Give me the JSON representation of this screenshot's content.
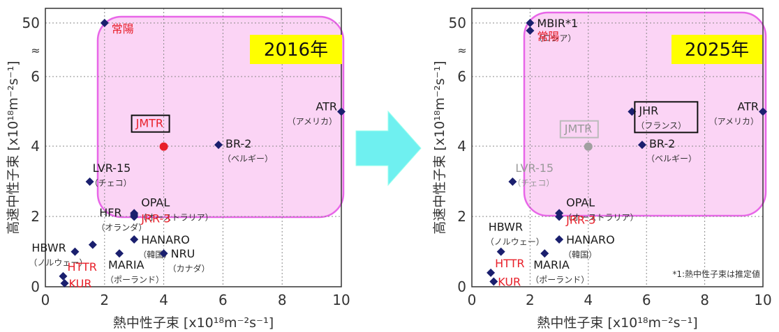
{
  "chart_data": [
    {
      "type": "scatter",
      "year_label": "2016年",
      "xlabel": "熱中性子束 [x10¹⁸m⁻²s⁻¹]",
      "ylabel": "高速中性子束 [x10¹⁸m⁻²s⁻¹]",
      "xlim": [
        0,
        10
      ],
      "x_ticks": [
        "0",
        "2",
        "4",
        "6",
        "8",
        "10"
      ],
      "y_ticks": [
        "0",
        "2",
        "4",
        "6",
        "50"
      ],
      "axis_break": "≈",
      "grid": true,
      "points": [
        {
          "name": "常陽",
          "x": 2.0,
          "y": 50,
          "color": "#e8202a"
        },
        {
          "name": "ATR",
          "sub": "（アメリカ）",
          "x": 10.0,
          "y": 5.0,
          "color": "#1a1a1a"
        },
        {
          "name": "JMTR",
          "x": 4.0,
          "y": 4.0,
          "color": "#e8202a",
          "highlight": true
        },
        {
          "name": "BR-2",
          "sub": "（ベルギー）",
          "x": 5.85,
          "y": 4.05,
          "color": "#1a1a1a"
        },
        {
          "name": "LVR-15",
          "sub": "（チェコ）",
          "x": 1.5,
          "y": 3.0,
          "color": "#1a1a1a"
        },
        {
          "name": "OPAL",
          "sub": "（オーストラリア）",
          "x": 3.0,
          "y": 2.1,
          "color": "#1a1a1a"
        },
        {
          "name": "JRR-3",
          "x": 3.0,
          "y": 2.0,
          "color": "#e8202a"
        },
        {
          "name": "HFR",
          "sub": "（オランダ）",
          "x": 3.0,
          "y": 2.05,
          "color": "#1a1a1a"
        },
        {
          "name": "HBWR",
          "sub": "（ノルウェー）",
          "x": 1.0,
          "y": 1.0,
          "color": "#1a1a1a"
        },
        {
          "name": "HANARO",
          "sub": "（韓国）",
          "x": 3.0,
          "y": 1.35,
          "color": "#1a1a1a"
        },
        {
          "name": "NRU",
          "sub": "（カナダ）",
          "x": 4.0,
          "y": 0.95,
          "color": "#1a1a1a"
        },
        {
          "name": "MARIA",
          "sub": "（ポーランド）",
          "x": 2.5,
          "y": 0.95,
          "color": "#1a1a1a"
        },
        {
          "name": "HTTR",
          "x": 0.6,
          "y": 0.3,
          "color": "#e8202a"
        },
        {
          "name": "KUR",
          "x": 0.65,
          "y": 0.1,
          "color": "#e8202a"
        },
        {
          "name": "",
          "x": 1.6,
          "y": 1.2,
          "color": "#1a1a1a"
        }
      ]
    },
    {
      "type": "scatter",
      "year_label": "2025年",
      "xlabel": "熱中性子束 [x10¹⁸m⁻²s⁻¹]",
      "ylabel": "高速中性子束 [x10¹⁸m⁻²s⁻¹]",
      "xlim": [
        0,
        10
      ],
      "x_ticks": [
        "0",
        "2",
        "4",
        "6",
        "8",
        "10"
      ],
      "y_ticks": [
        "0",
        "2",
        "4",
        "6",
        "50"
      ],
      "axis_break": "≈",
      "grid": true,
      "footnote": "*1:熱中性子束は推定値",
      "points": [
        {
          "name": "MBIR*1",
          "sub": "（ロシア）",
          "x": 2.0,
          "y": 50,
          "color": "#1a1a1a"
        },
        {
          "name": "常陽",
          "x": 2.0,
          "y": 48,
          "color": "#e8202a"
        },
        {
          "name": "ATR",
          "sub": "（アメリカ）",
          "x": 10.0,
          "y": 5.0,
          "color": "#1a1a1a"
        },
        {
          "name": "JHR",
          "sub": "（フランス）",
          "x": 5.5,
          "y": 5.0,
          "color": "#1a1a1a",
          "boxed": true
        },
        {
          "name": "JMTR",
          "x": 4.0,
          "y": 4.0,
          "color": "#a0a0a0",
          "highlight": true,
          "faded": true
        },
        {
          "name": "BR-2",
          "sub": "（ベルギー）",
          "x": 5.85,
          "y": 4.05,
          "color": "#1a1a1a"
        },
        {
          "name": "LVR-15",
          "sub": "（チェコ）",
          "x": 1.4,
          "y": 3.0,
          "color": "#1a1a1a",
          "faded": true
        },
        {
          "name": "OPAL",
          "sub": "（オーストラリア）",
          "x": 3.0,
          "y": 2.1,
          "color": "#1a1a1a"
        },
        {
          "name": "JRR-3",
          "x": 3.0,
          "y": 2.0,
          "color": "#e8202a"
        },
        {
          "name": "HBWR",
          "sub": "（ノルウェー）",
          "x": 1.0,
          "y": 1.0,
          "color": "#1a1a1a"
        },
        {
          "name": "HANARO",
          "sub": "（韓国）",
          "x": 3.0,
          "y": 1.35,
          "color": "#1a1a1a"
        },
        {
          "name": "MARIA",
          "sub": "（ポーランド）",
          "x": 2.5,
          "y": 0.95,
          "color": "#1a1a1a"
        },
        {
          "name": "HTTR",
          "x": 0.65,
          "y": 0.4,
          "color": "#e8202a"
        },
        {
          "name": "KUR",
          "x": 0.75,
          "y": 0.15,
          "color": "#e8202a"
        }
      ]
    }
  ],
  "colors": {
    "region_fill": "#fbd4f5",
    "region_stroke": "#e866e8",
    "year_badge": "#ffff00",
    "arrow": "#6ff0f0",
    "axis": "#333333",
    "grid": "#888888"
  }
}
